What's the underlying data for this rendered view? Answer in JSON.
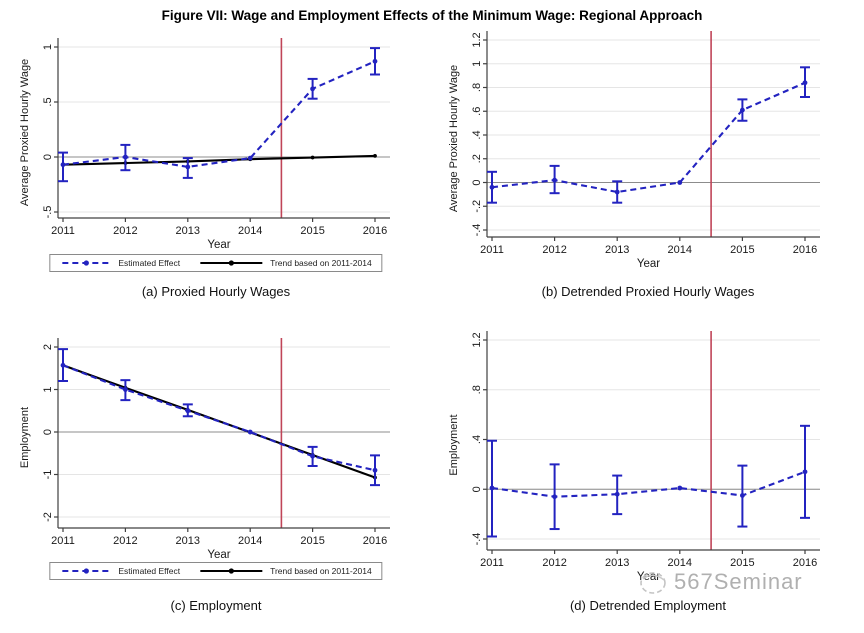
{
  "title": "Figure VII: Wage and Employment Effects of the Minimum Wage: Regional Approach",
  "watermark": {
    "text": "567Seminar"
  },
  "legend": {
    "estimated_label": "Estimated Effect",
    "trend_label": "Trend based on 2011-2014"
  },
  "colors": {
    "estimate": "#2323c0",
    "trend": "#000000",
    "event_line": "#c04558",
    "zero_line": "#8c8c8c",
    "grid": "#e5e5e5",
    "axis": "#404040",
    "tick_text": "#1a1a1a",
    "watermark": "#b0b0b0"
  },
  "chart_data": [
    {
      "id": "a",
      "type": "line",
      "caption": "(a)  Proxied Hourly Wages",
      "xlabel": "Year",
      "ylabel": "Average Proxied Hourly Wage",
      "x": [
        2011,
        2012,
        2013,
        2014,
        2015,
        2016
      ],
      "xtick_labels": [
        "2011",
        "2012",
        "2013",
        "2014",
        "2015",
        "2016"
      ],
      "xlim": [
        2011,
        2016
      ],
      "ylim": [
        -0.5,
        1
      ],
      "yticks": [
        -0.5,
        0,
        0.5,
        1
      ],
      "ytick_labels": [
        "-.5",
        "0",
        ".5",
        "1"
      ],
      "event_line_x": 2014.5,
      "zero_line": true,
      "grid": true,
      "has_legend": true,
      "series": [
        {
          "name": "Trend based on 2011-2014",
          "role": "trend",
          "line": "solid",
          "values": [
            -0.07,
            -0.055,
            -0.04,
            -0.02,
            -0.005,
            0.01
          ]
        },
        {
          "name": "Estimated Effect",
          "role": "estimate",
          "line": "dashed",
          "values": [
            -0.07,
            0.0,
            -0.09,
            -0.01,
            0.62,
            0.87
          ],
          "ci_low": [
            -0.22,
            -0.12,
            -0.19,
            null,
            0.53,
            0.75
          ],
          "ci_high": [
            0.04,
            0.11,
            -0.01,
            null,
            0.71,
            0.99
          ]
        }
      ]
    },
    {
      "id": "b",
      "type": "line",
      "caption": "(b) Detrended Proxied Hourly Wages",
      "xlabel": "Year",
      "ylabel": "Average Proxied Hourly Wage",
      "x": [
        2011,
        2012,
        2013,
        2014,
        2015,
        2016
      ],
      "xtick_labels": [
        "2011",
        "2012",
        "2013",
        "2014",
        "2015",
        "2016"
      ],
      "xlim": [
        2011,
        2016
      ],
      "ylim": [
        -0.4,
        1.2
      ],
      "yticks": [
        -0.4,
        -0.2,
        0,
        0.2,
        0.4,
        0.6,
        0.8,
        1,
        1.2
      ],
      "ytick_labels": [
        "-.4",
        "-.2",
        "0",
        ".2",
        ".4",
        ".6",
        ".8",
        "1",
        "1.2"
      ],
      "event_line_x": 2014.5,
      "zero_line": true,
      "grid": true,
      "has_legend": false,
      "series": [
        {
          "name": "Estimated Effect",
          "role": "estimate",
          "line": "dashed",
          "values": [
            -0.04,
            0.02,
            -0.08,
            0.0,
            0.61,
            0.84
          ],
          "ci_low": [
            -0.17,
            -0.09,
            -0.17,
            null,
            0.52,
            0.72
          ],
          "ci_high": [
            0.09,
            0.14,
            0.01,
            null,
            0.7,
            0.97
          ]
        }
      ]
    },
    {
      "id": "c",
      "type": "line",
      "caption": "(c) Employment",
      "xlabel": "Year",
      "ylabel": "Employment",
      "x": [
        2011,
        2012,
        2013,
        2014,
        2015,
        2016
      ],
      "xtick_labels": [
        "2011",
        "2012",
        "2013",
        "2014",
        "2015",
        "2016"
      ],
      "xlim": [
        2011,
        2016
      ],
      "ylim": [
        -2,
        2
      ],
      "yticks": [
        -2,
        -1,
        0,
        1,
        2
      ],
      "ytick_labels": [
        "-2",
        "-1",
        "0",
        "1",
        "2"
      ],
      "event_line_x": 2014.5,
      "zero_line": true,
      "grid": true,
      "has_legend": true,
      "series": [
        {
          "name": "Trend based on 2011-2014",
          "role": "trend",
          "line": "solid",
          "values": [
            1.57,
            1.04,
            0.52,
            -0.01,
            -0.54,
            -1.07
          ]
        },
        {
          "name": "Estimated Effect",
          "role": "estimate",
          "line": "dashed",
          "values": [
            1.57,
            1.0,
            0.5,
            0.0,
            -0.57,
            -0.9
          ],
          "ci_low": [
            1.2,
            0.75,
            0.37,
            null,
            -0.8,
            -1.25
          ],
          "ci_high": [
            1.95,
            1.22,
            0.65,
            null,
            -0.35,
            -0.55
          ]
        }
      ]
    },
    {
      "id": "d",
      "type": "line",
      "caption": "(d) Detrended Employment",
      "xlabel": "Year",
      "ylabel": "Employment",
      "x": [
        2011,
        2012,
        2013,
        2014,
        2015,
        2016
      ],
      "xtick_labels": [
        "2011",
        "2012",
        "2013",
        "2014",
        "2015",
        "2016"
      ],
      "xlim": [
        2011,
        2016
      ],
      "ylim": [
        -0.4,
        1.2
      ],
      "yticks": [
        -0.4,
        0,
        0.4,
        0.8,
        1.2
      ],
      "ytick_labels": [
        "-.4",
        "0",
        ".4",
        ".8",
        "1.2"
      ],
      "event_line_x": 2014.5,
      "zero_line": true,
      "grid": true,
      "has_legend": false,
      "series": [
        {
          "name": "Estimated Effect",
          "role": "estimate",
          "line": "dashed",
          "values": [
            0.01,
            -0.06,
            -0.04,
            0.01,
            -0.05,
            0.14
          ],
          "ci_low": [
            -0.38,
            -0.32,
            -0.2,
            null,
            -0.3,
            -0.23
          ],
          "ci_high": [
            0.39,
            0.2,
            0.11,
            null,
            0.19,
            0.51
          ]
        }
      ]
    }
  ]
}
